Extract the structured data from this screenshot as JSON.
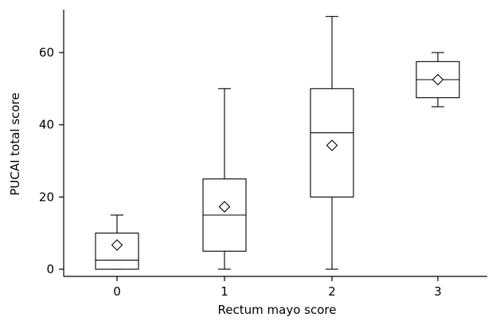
{
  "chart_data": {
    "type": "box",
    "xlabel": "Rectum mayo score",
    "ylabel": "PUCAI total score",
    "categories": [
      "0",
      "1",
      "2",
      "3"
    ],
    "ylim": [
      -2,
      72
    ],
    "yticks": [
      0,
      20,
      40,
      60
    ],
    "boxes": [
      {
        "category": "0",
        "min": 0,
        "q1": 0,
        "median": 2.5,
        "q3": 10,
        "max": 15,
        "mean": 6.7
      },
      {
        "category": "1",
        "min": 0,
        "q1": 5,
        "median": 15,
        "q3": 25,
        "max": 50,
        "mean": 17.3
      },
      {
        "category": "2",
        "min": 0,
        "q1": 20,
        "median": 37.8,
        "q3": 50,
        "max": 70,
        "mean": 34.3
      },
      {
        "category": "3",
        "min": 45,
        "q1": 47.5,
        "median": 52.5,
        "q3": 57.5,
        "max": 60,
        "mean": 52.5
      }
    ],
    "grid": false,
    "legend": "none"
  }
}
